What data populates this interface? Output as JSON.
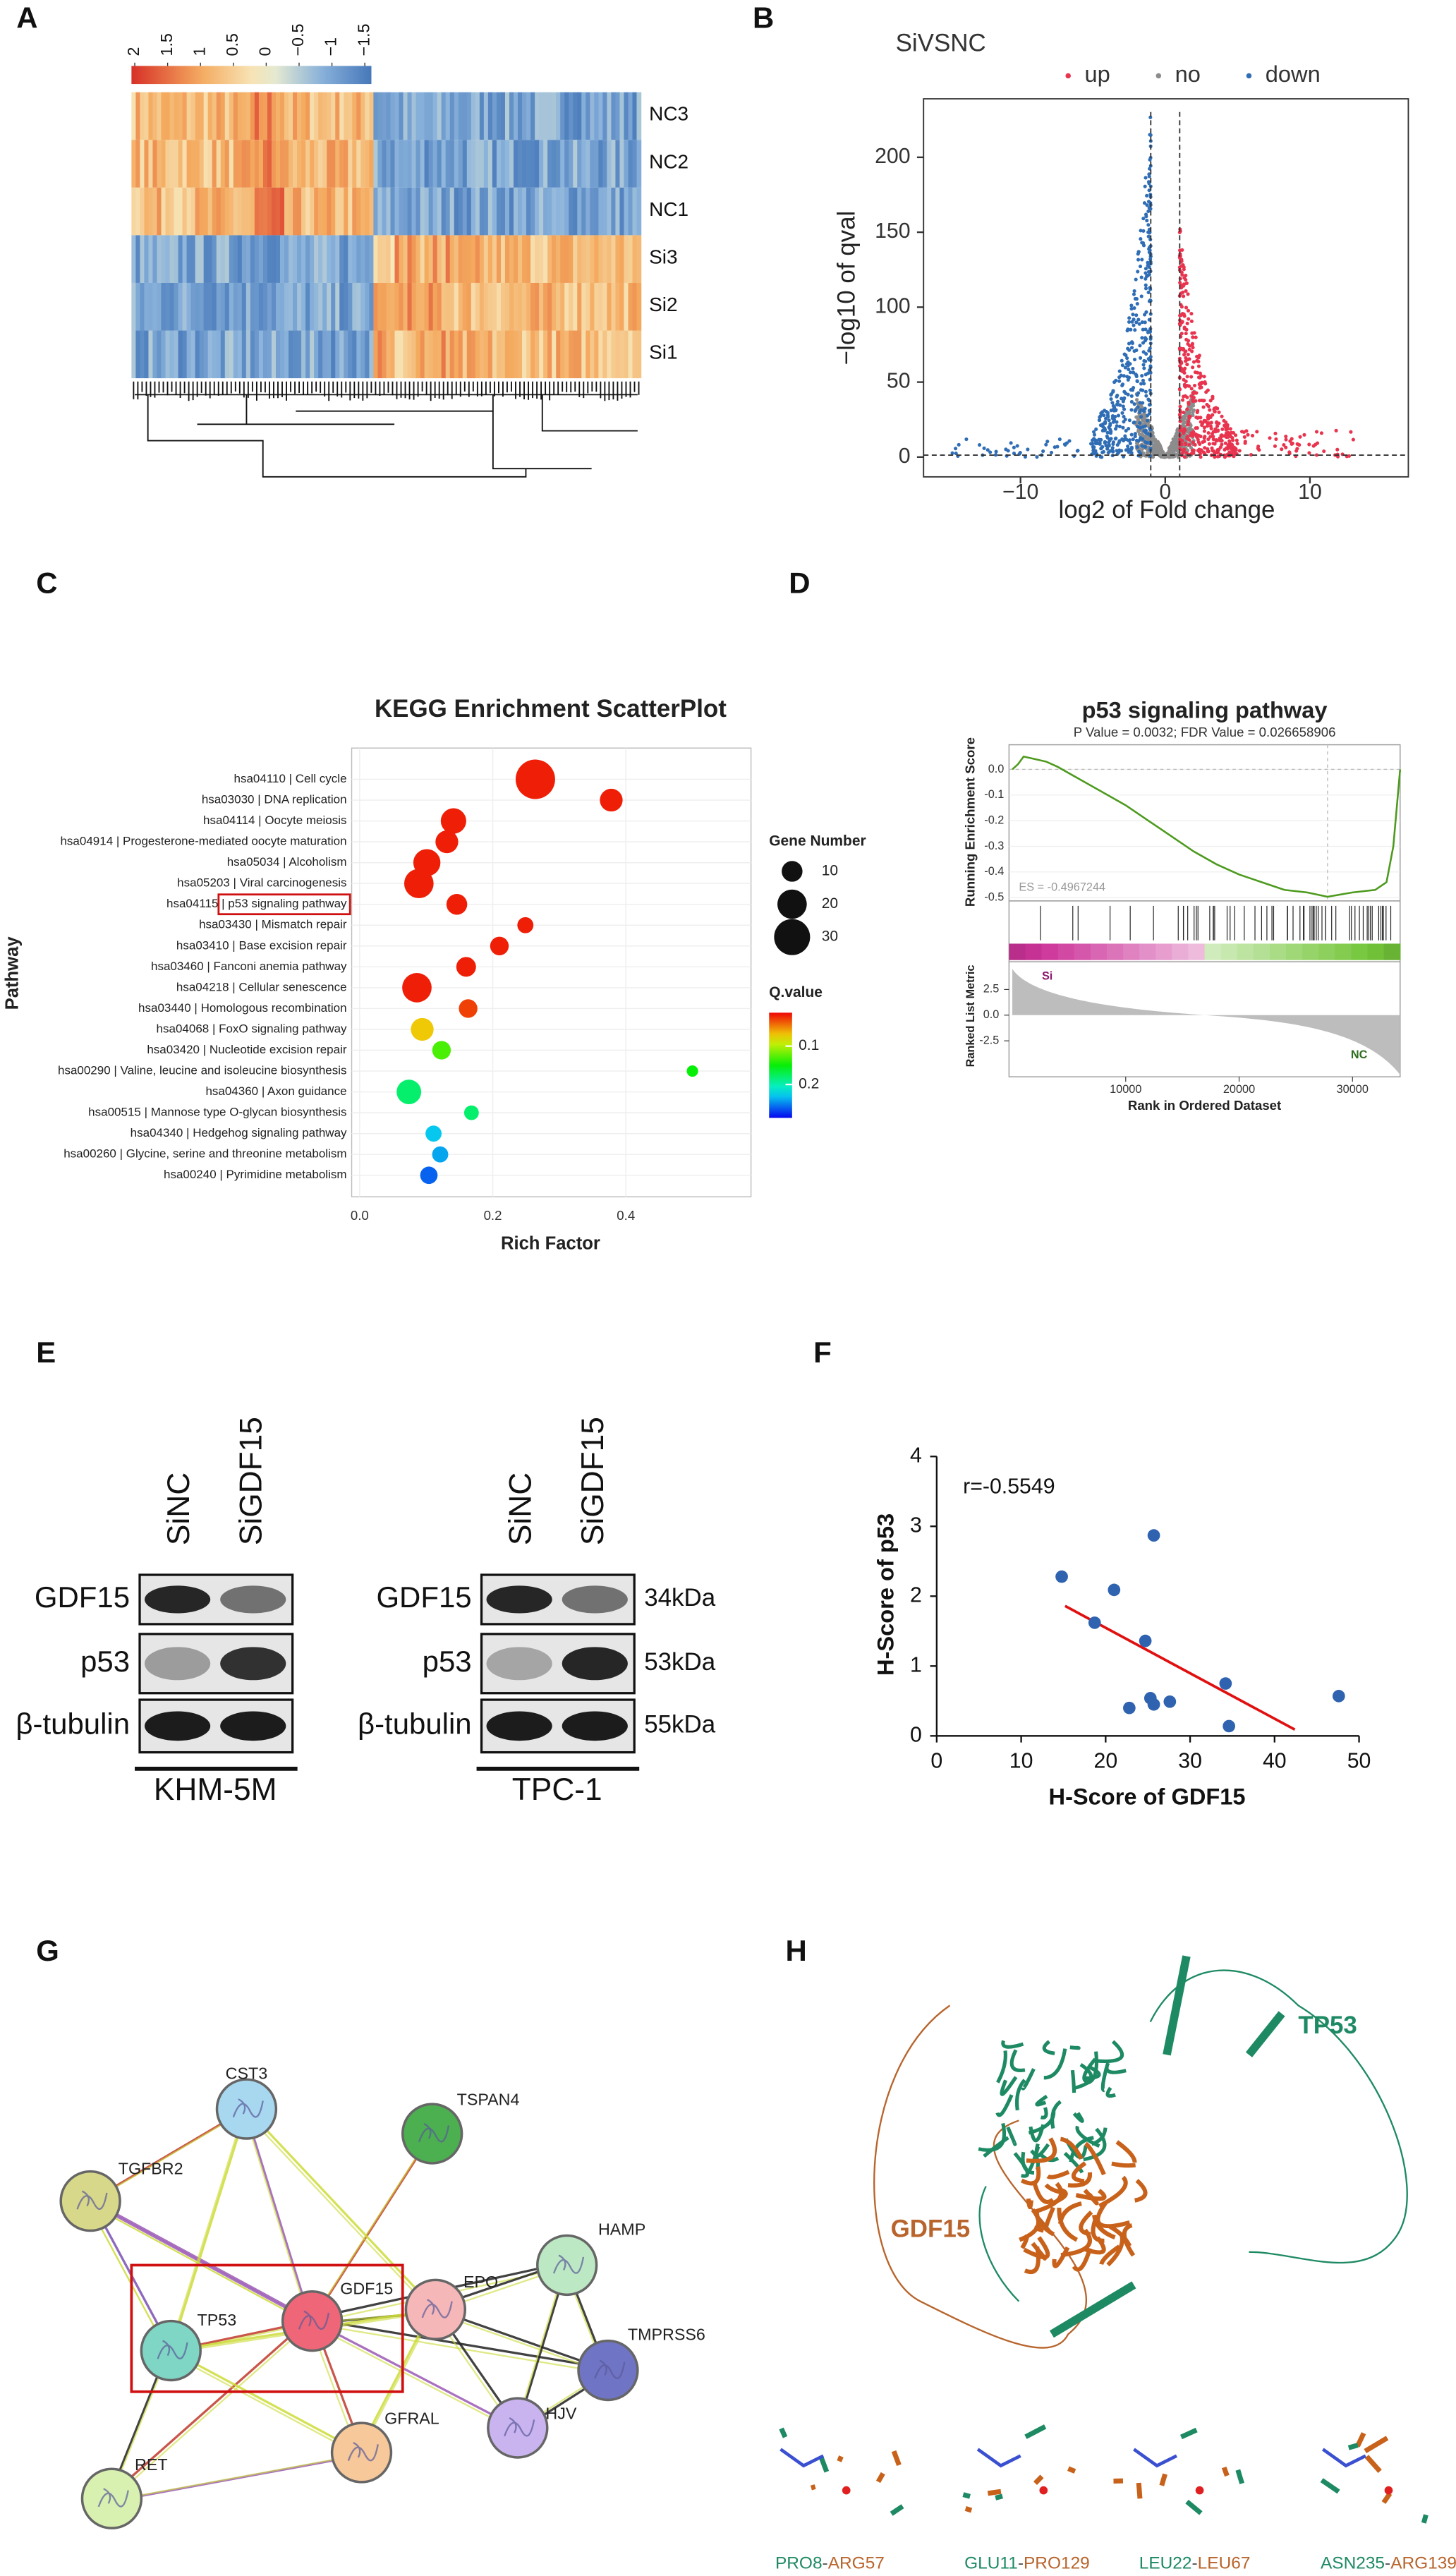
{
  "panel_labels": [
    "A",
    "B",
    "C",
    "D",
    "E",
    "F",
    "G",
    "H"
  ],
  "heatmap": {
    "colorbar_lim": [
      2.05,
      -1.6
    ],
    "colorbar_ticks": [
      2,
      1.5,
      1,
      0.5,
      0,
      {
        "value": -0.5,
        "label": "−0.5"
      },
      {
        "value": -1,
        "label": "−1"
      },
      {
        "value": -1.5,
        "label": "−1.5"
      }
    ],
    "rows": [
      "NC3",
      "NC2",
      "NC1",
      "Si3",
      "Si2",
      "Si1"
    ]
  },
  "volcano": {
    "type": "scatter",
    "title": "SiVSNC",
    "legend": [
      {
        "name": "up",
        "color": "#e8344e"
      },
      {
        "name": "no",
        "color": "#8c8c8c"
      },
      {
        "name": "down",
        "color": "#2f6db5"
      }
    ],
    "xlabel": "log2 of Fold change",
    "ylabel": "−log10 of qval",
    "xlim": [
      -16.7,
      16.8
    ],
    "ylim": [
      -13.2,
      239
    ],
    "xticks": [
      {
        "value": -10,
        "label": "−10"
      },
      0,
      10
    ],
    "yticks": [
      0,
      50,
      100,
      150,
      200
    ],
    "vlines": [
      -1,
      1
    ],
    "hline": 1.3
  },
  "kegg": {
    "type": "scatter",
    "title": "KEGG Enrichment ScatterPlot",
    "xlabel": "Rich Factor",
    "ylabel": "Pathway",
    "xlim": [
      -0.012,
      0.588
    ],
    "xticks": [
      {
        "value": 0,
        "label": "0.0"
      },
      0.2,
      0.4
    ],
    "pathways": [
      "hsa04110 | Cell cycle",
      "hsa03030 | DNA replication",
      "hsa04114 | Oocyte meiosis",
      "hsa04914 | Progesterone-mediated oocyte maturation",
      "hsa05034 | Alcoholism",
      "hsa05203 | Viral carcinogenesis",
      "hsa04115 | p53 signaling pathway",
      "hsa03430 | Mismatch repair",
      "hsa03410 | Base excision repair",
      "hsa03460 | Fanconi anemia pathway",
      "hsa04218 | Cellular senescence",
      "hsa03440 | Homologous recombination",
      "hsa04068 | FoxO signaling pathway",
      "hsa03420 | Nucleotide excision repair",
      "hsa00290 | Valine, leucine and isoleucine biosynthesis",
      "hsa04360 | Axon guidance",
      "hsa00515 | Mannose type O-glycan biosynthesis",
      "hsa04340 | Hedgehog signaling pathway",
      "hsa00260 | Glycine, serine and threonine metabolism",
      "hsa00240 | Pyrimidine metabolism"
    ],
    "rich_factor": [
      0.264,
      0.378,
      0.141,
      0.131,
      0.101,
      0.089,
      0.146,
      0.249,
      0.21,
      0.16,
      0.086,
      0.163,
      0.094,
      0.123,
      0.5,
      0.074,
      0.168,
      0.111,
      0.121,
      0.104
    ],
    "gene_number": [
      36,
      12,
      15,
      12,
      17,
      20,
      10,
      6,
      8,
      9,
      20,
      8,
      12,
      8,
      3,
      14,
      5,
      6,
      6,
      7
    ],
    "q_value": [
      0.02,
      0.02,
      0.02,
      0.02,
      0.02,
      0.02,
      0.02,
      0.02,
      0.02,
      0.02,
      0.02,
      0.03,
      0.07,
      0.13,
      0.15,
      0.18,
      0.18,
      0.23,
      0.24,
      0.26
    ],
    "size_legend_title": "Gene Number",
    "size_legend": [
      10,
      20,
      30
    ],
    "color_legend_title": "Q.value",
    "qlim": [
      0.013,
      0.287
    ],
    "qticks": [
      0.1,
      0.2
    ]
  },
  "gsea": {
    "title": "p53 signaling pathway",
    "subtitle": "P Value = 0.0032; FDR Value = 0.026658906",
    "ylabel": "Running Enrichment Score",
    "es_label": "ES = -0.4967244",
    "xlim": [
      -290,
      34200
    ],
    "ylim": [
      -0.513,
      0.096
    ],
    "yticks": [
      {
        "value": 0,
        "label": "0.0"
      },
      -0.1,
      -0.2,
      -0.3,
      -0.4,
      -0.5
    ],
    "es_curve": {
      "x": [
        0,
        500,
        1000,
        2000,
        3000,
        4000,
        6000,
        8000,
        10000,
        12000,
        14000,
        16000,
        18000,
        20000,
        22000,
        24000,
        26000,
        27800,
        30000,
        32000,
        33000,
        33600,
        33900,
        34200
      ],
      "y": [
        0,
        0.02,
        0.05,
        0.04,
        0.03,
        0.01,
        -0.04,
        -0.09,
        -0.14,
        -0.2,
        -0.26,
        -0.32,
        -0.37,
        -0.41,
        -0.44,
        -0.47,
        -0.48,
        -0.4967244,
        -0.48,
        -0.47,
        -0.44,
        -0.3,
        -0.15,
        0.0
      ]
    },
    "left_label": "Si",
    "right_label": "NC",
    "metric_ylabel": "Ranked List Metric",
    "metric_ylim": [
      -6,
      5.2
    ],
    "metric_yticks": [
      2.5,
      {
        "value": 0,
        "label": "0.0"
      },
      -2.5
    ],
    "xticks": [
      10000,
      20000,
      30000
    ],
    "xlabel": "Rank in Ordered Dataset"
  },
  "western": {
    "left": {
      "lanes": [
        "SiNC",
        "SiGDF15"
      ],
      "cell_line": "KHM-5M"
    },
    "right": {
      "lanes": [
        "SiNC",
        "SiGDF15"
      ],
      "cell_line": "TPC-1"
    },
    "proteins": [
      "GDF15",
      "p53",
      "β-tubulin"
    ],
    "sizes": [
      "34kDa",
      "53kDa",
      "55kDa"
    ]
  },
  "correlation": {
    "type": "scatter",
    "annotation": "r=-0.5549",
    "xlabel": "H-Score of GDF15",
    "ylabel": "H-Score of p53",
    "xlim": [
      0,
      50
    ],
    "ylim": [
      0,
      4
    ],
    "xticks": [
      0,
      10,
      20,
      30,
      40,
      50
    ],
    "yticks": [
      0,
      1,
      2,
      3,
      4
    ],
    "color": "#2f63b0",
    "x": [
      14.8,
      18.7,
      21.0,
      22.8,
      24.7,
      25.7,
      25.3,
      25.7,
      27.6,
      34.2,
      34.6,
      47.6
    ],
    "y": [
      2.28,
      1.62,
      2.09,
      0.4,
      1.36,
      2.87,
      0.54,
      0.45,
      0.49,
      0.75,
      0.14,
      0.57
    ],
    "fit_line": {
      "x": [
        15.2,
        42.4
      ],
      "y": [
        1.86,
        0.09
      ],
      "color": "#e01010"
    }
  },
  "network": {
    "nodes": [
      "CST3",
      "TSPAN4",
      "TGFBR2",
      "HAMP",
      "TP53",
      "GDF15",
      "EPO",
      "TMPRSS6",
      "HJV",
      "GFRAL",
      "RET"
    ]
  },
  "structure": {
    "chain_labels": [
      "TP53",
      "GDF15"
    ],
    "interactions": [
      [
        "PRO8",
        "-",
        "ARG57"
      ],
      [
        "GLU11",
        "-",
        "PRO129"
      ],
      [
        "LEU22",
        "-",
        "LEU67"
      ],
      [
        "ASN235",
        "-",
        "ARG139"
      ]
    ]
  }
}
